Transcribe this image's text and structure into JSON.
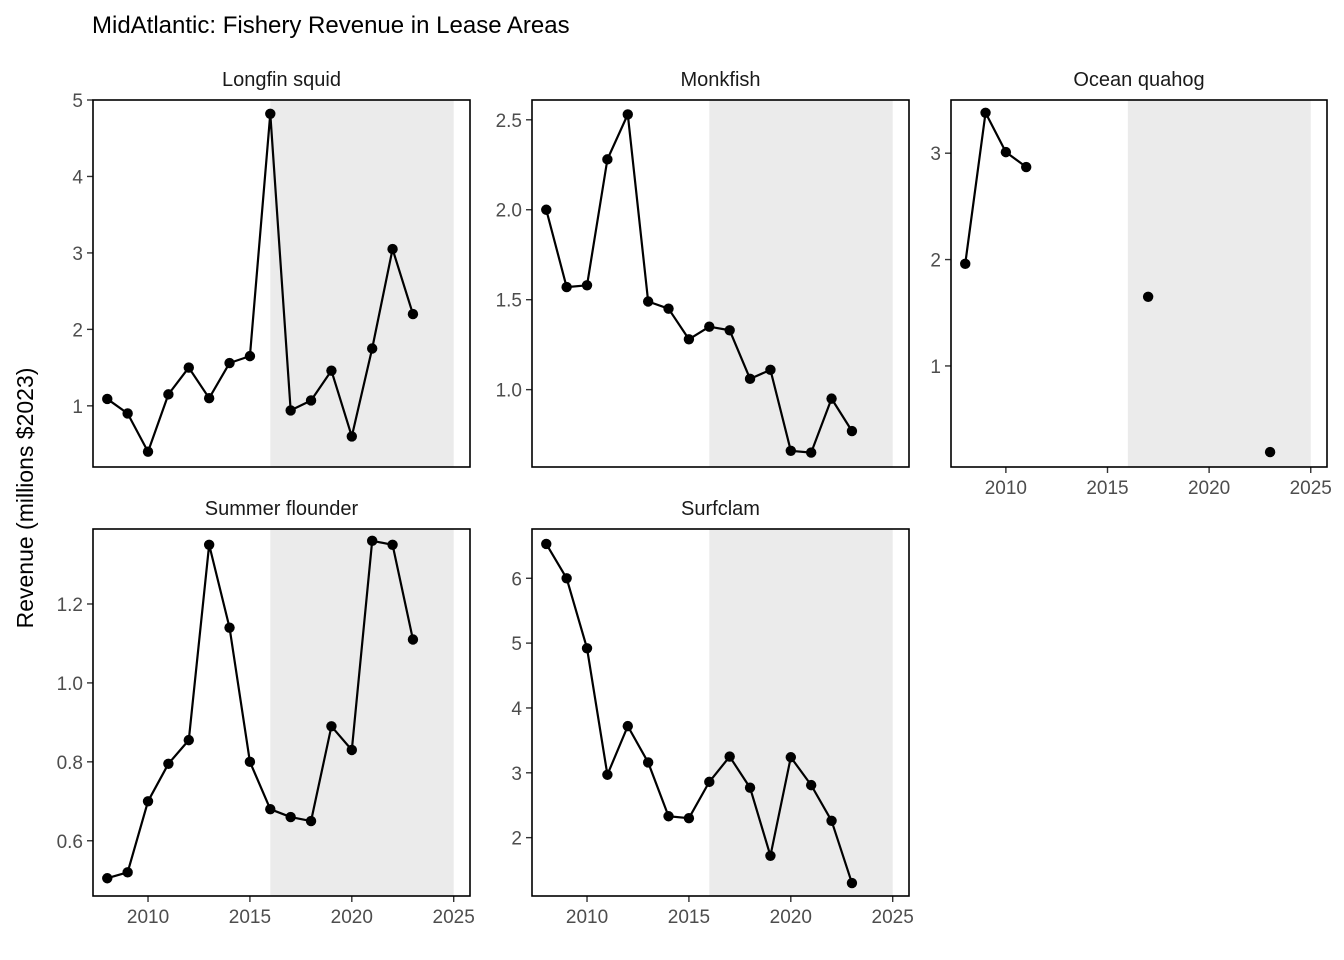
{
  "chart_data": {
    "type": "line",
    "title": "MidAtlantic: Fishery Revenue in Lease Areas",
    "ylabel": "Revenue (millions $2023)",
    "xlabel": "",
    "xlim": [
      2007.3,
      2025.8
    ],
    "shaded_region": [
      2016,
      2025
    ],
    "colors": {
      "line": "#000000",
      "shade": "#ebebeb",
      "frame": "#000000"
    },
    "panels": [
      {
        "name": "Longfin squid",
        "x": [
          2008,
          2009,
          2010,
          2011,
          2012,
          2013,
          2014,
          2015,
          2016,
          2017,
          2018,
          2019,
          2020,
          2021,
          2022,
          2023
        ],
        "y": [
          1.09,
          0.9,
          0.4,
          1.15,
          1.5,
          1.1,
          1.56,
          1.65,
          4.82,
          0.94,
          1.07,
          1.46,
          0.6,
          1.75,
          3.05,
          2.2
        ],
        "ylim": [
          0.2,
          5.0
        ],
        "yticks": [
          "1",
          "2",
          "3",
          "4",
          "5"
        ],
        "xticks": []
      },
      {
        "name": "Monkfish",
        "x": [
          2008,
          2009,
          2010,
          2011,
          2012,
          2013,
          2014,
          2015,
          2016,
          2017,
          2018,
          2019,
          2020,
          2021,
          2022,
          2023
        ],
        "y": [
          2.0,
          1.57,
          1.58,
          2.28,
          2.53,
          1.49,
          1.45,
          1.28,
          1.35,
          1.33,
          1.06,
          1.11,
          0.66,
          0.65,
          0.95,
          0.77
        ],
        "ylim": [
          0.57,
          2.61
        ],
        "yticks": [
          "1.0",
          "1.5",
          "2.0",
          "2.5"
        ],
        "xticks": []
      },
      {
        "name": "Ocean quahog",
        "x": [
          2008,
          2009,
          2010,
          2011,
          2017,
          2023
        ],
        "y": [
          1.96,
          3.38,
          3.01,
          2.87,
          1.65,
          0.19
        ],
        "ylim": [
          0.05,
          3.5
        ],
        "segments": [
          [
            0,
            3
          ]
        ],
        "yticks": [
          "1",
          "2",
          "3"
        ],
        "xticks": [
          "2010",
          "2015",
          "2020",
          "2025"
        ]
      },
      {
        "name": "Summer flounder",
        "x": [
          2008,
          2009,
          2010,
          2011,
          2012,
          2013,
          2014,
          2015,
          2016,
          2017,
          2018,
          2019,
          2020,
          2021,
          2022,
          2023
        ],
        "y": [
          0.505,
          0.52,
          0.7,
          0.795,
          0.855,
          1.35,
          1.14,
          0.8,
          0.68,
          0.66,
          0.65,
          0.89,
          0.83,
          1.36,
          1.35,
          1.11
        ],
        "ylim": [
          0.46,
          1.39
        ],
        "yticks": [
          "0.6",
          "0.8",
          "1.0",
          "1.2"
        ],
        "xticks": [
          "2010",
          "2015",
          "2020",
          "2025"
        ]
      },
      {
        "name": "Surfclam",
        "x": [
          2008,
          2009,
          2010,
          2011,
          2012,
          2013,
          2014,
          2015,
          2016,
          2017,
          2018,
          2019,
          2020,
          2021,
          2022,
          2023
        ],
        "y": [
          6.53,
          6.0,
          4.92,
          2.97,
          3.72,
          3.16,
          2.33,
          2.3,
          2.86,
          3.25,
          2.77,
          1.72,
          3.24,
          2.81,
          2.26,
          1.3
        ],
        "ylim": [
          1.1,
          6.76
        ],
        "yticks": [
          "2",
          "3",
          "4",
          "5",
          "6"
        ],
        "xticks": [
          "2010",
          "2015",
          "2020",
          "2025"
        ]
      }
    ]
  }
}
